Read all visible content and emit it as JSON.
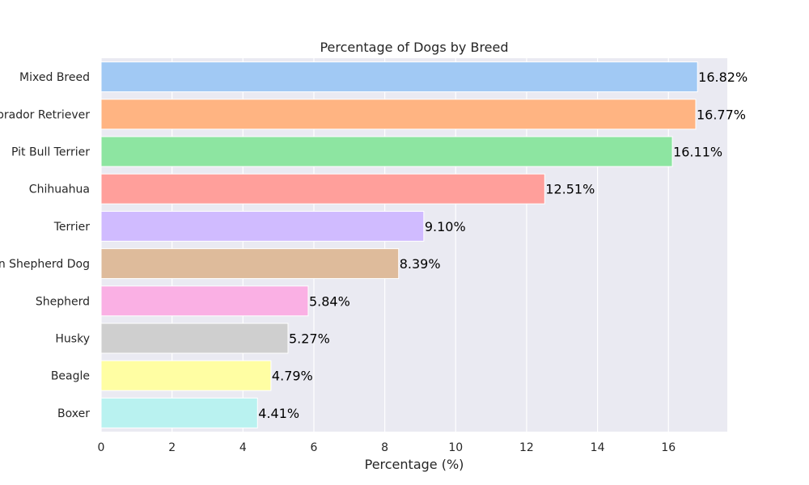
{
  "chart_data": {
    "type": "bar",
    "orientation": "horizontal",
    "title": "Percentage of Dogs by Breed",
    "xlabel": "Percentage (%)",
    "ylabel": "",
    "xlim": [
      0,
      17.66
    ],
    "xticks": [
      0,
      2,
      4,
      6,
      8,
      10,
      12,
      14,
      16
    ],
    "grid": true,
    "categories": [
      "Mixed Breed",
      "Labrador Retriever",
      "Pit Bull Terrier",
      "Chihuahua",
      "Terrier",
      "German Shepherd Dog",
      "Shepherd",
      "Husky",
      "Beagle",
      "Boxer"
    ],
    "values": [
      16.82,
      16.77,
      16.11,
      12.51,
      9.1,
      8.39,
      5.84,
      5.27,
      4.79,
      4.41
    ],
    "data_labels": [
      "16.82%",
      "16.77%",
      "16.11%",
      "12.51%",
      "9.10%",
      "8.39%",
      "5.84%",
      "5.27%",
      "4.79%",
      "4.41%"
    ],
    "colors": [
      "#a1c9f4",
      "#ffb482",
      "#8de5a1",
      "#ff9f9b",
      "#d0bbff",
      "#debb9b",
      "#fab0e4",
      "#cfcfcf",
      "#fffea3",
      "#b9f2f0"
    ],
    "background_color": "#eaeaf2",
    "grid_color": "#ffffff"
  }
}
